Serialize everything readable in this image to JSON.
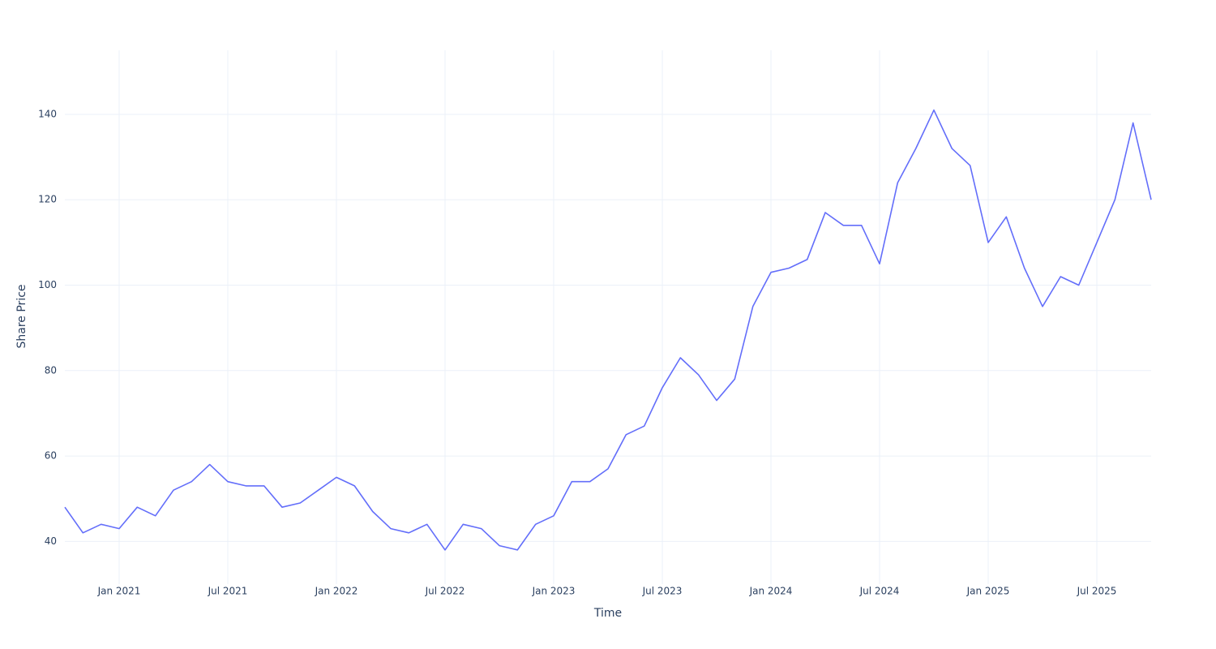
{
  "chart_data": {
    "type": "line",
    "x_label": "Time",
    "y_label": "Share Price",
    "x": [
      "2020-10",
      "2020-11",
      "2020-12",
      "2021-01",
      "2021-02",
      "2021-03",
      "2021-04",
      "2021-05",
      "2021-06",
      "2021-07",
      "2021-08",
      "2021-09",
      "2021-10",
      "2021-11",
      "2021-12",
      "2022-01",
      "2022-02",
      "2022-03",
      "2022-04",
      "2022-05",
      "2022-06",
      "2022-07",
      "2022-08",
      "2022-09",
      "2022-10",
      "2022-11",
      "2022-12",
      "2023-01",
      "2023-02",
      "2023-03",
      "2023-04",
      "2023-05",
      "2023-06",
      "2023-07",
      "2023-08",
      "2023-09",
      "2023-10",
      "2023-11",
      "2023-12",
      "2024-01",
      "2024-02",
      "2024-03",
      "2024-04",
      "2024-05",
      "2024-06",
      "2024-07",
      "2024-08",
      "2024-09",
      "2024-10",
      "2024-11",
      "2024-12",
      "2025-01",
      "2025-02",
      "2025-03",
      "2025-04",
      "2025-05",
      "2025-06",
      "2025-07",
      "2025-08",
      "2025-09",
      "2025-10"
    ],
    "series": [
      {
        "name": "Share Price",
        "color": "#636efa",
        "values": [
          48,
          42,
          44,
          43,
          48,
          46,
          52,
          54,
          58,
          54,
          53,
          53,
          48,
          49,
          52,
          55,
          53,
          47,
          43,
          42,
          44,
          38,
          44,
          43,
          39,
          38,
          44,
          46,
          54,
          54,
          57,
          65,
          67,
          76,
          83,
          79,
          73,
          78,
          95,
          103,
          104,
          106,
          117,
          114,
          114,
          105,
          124,
          132,
          141,
          132,
          128,
          110,
          116,
          104,
          95,
          102,
          100,
          110,
          120,
          138,
          120
        ]
      }
    ],
    "xlim": [
      "2020-10",
      "2025-10"
    ],
    "xticks": [
      {
        "value": "2021-01",
        "label": "Jan 2021"
      },
      {
        "value": "2021-07",
        "label": "Jul 2021"
      },
      {
        "value": "2022-01",
        "label": "Jan 2022"
      },
      {
        "value": "2022-07",
        "label": "Jul 2022"
      },
      {
        "value": "2023-01",
        "label": "Jan 2023"
      },
      {
        "value": "2023-07",
        "label": "Jul 2023"
      },
      {
        "value": "2024-01",
        "label": "Jan 2024"
      },
      {
        "value": "2024-07",
        "label": "Jul 2024"
      },
      {
        "value": "2025-01",
        "label": "Jan 2025"
      },
      {
        "value": "2025-07",
        "label": "Jul 2025"
      }
    ],
    "ylim": [
      30,
      155
    ],
    "yticks": [
      40,
      60,
      80,
      100,
      120,
      140
    ],
    "grid": true
  }
}
